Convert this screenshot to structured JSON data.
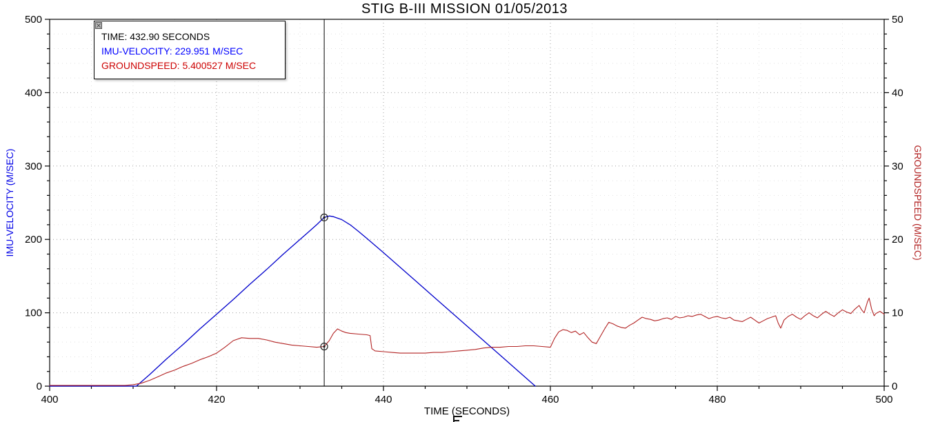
{
  "chart_data": {
    "type": "line",
    "title": "STIG B-III MISSION 01/05/2013",
    "xlabel": "TIME (SECONDS)",
    "grid": true,
    "legend_position": "none",
    "x_axis": {
      "min": 400,
      "max": 500,
      "major_tick_step": 20,
      "minor_tick_step": 5,
      "tick_labels": [
        "400",
        "420",
        "440",
        "460",
        "480",
        "500"
      ]
    },
    "y_left": {
      "label": "IMU-VELOCITY (M/SEC)",
      "min": 0,
      "max": 500,
      "major_tick_step": 100,
      "minor_tick_step": 20,
      "tick_labels": [
        "0",
        "100",
        "200",
        "300",
        "400",
        "500"
      ],
      "color": "#0000E6"
    },
    "y_right": {
      "label": "GROUNDSPEED (M/SEC)",
      "min": 0,
      "max": 50,
      "major_tick_step": 10,
      "minor_tick_step": 2,
      "tick_labels": [
        "0",
        "10",
        "20",
        "30",
        "40",
        "50"
      ],
      "color": "#B22222"
    },
    "cursor": {
      "time": 432.9,
      "imu_velocity": 229.951,
      "groundspeed": 5.400527
    },
    "series": [
      {
        "name": "IMU-VELOCITY",
        "axis": "left",
        "color": "#0000CC",
        "points": [
          [
            400,
            0
          ],
          [
            405,
            0
          ],
          [
            408,
            0
          ],
          [
            410.4,
            0
          ],
          [
            412,
            16
          ],
          [
            414,
            37
          ],
          [
            416,
            57
          ],
          [
            418,
            78
          ],
          [
            420,
            98
          ],
          [
            422,
            118
          ],
          [
            424,
            139
          ],
          [
            426,
            159
          ],
          [
            428,
            180
          ],
          [
            430,
            200
          ],
          [
            431,
            210
          ],
          [
            432,
            220
          ],
          [
            432.9,
            229.951
          ],
          [
            433.5,
            232
          ],
          [
            434,
            231
          ],
          [
            435,
            227
          ],
          [
            436,
            220
          ],
          [
            437,
            211
          ],
          [
            438,
            201.5
          ],
          [
            440,
            182
          ],
          [
            442,
            162
          ],
          [
            444,
            142
          ],
          [
            446,
            122
          ],
          [
            448,
            102
          ],
          [
            450,
            82
          ],
          [
            452,
            62
          ],
          [
            454,
            42
          ],
          [
            456,
            22
          ],
          [
            457.4,
            8
          ],
          [
            458.2,
            0
          ]
        ]
      },
      {
        "name": "GROUNDSPEED",
        "axis": "right",
        "color": "#B22222",
        "points": [
          [
            400,
            0.1
          ],
          [
            405,
            0.1
          ],
          [
            409,
            0.1
          ],
          [
            410,
            0.2
          ],
          [
            411,
            0.4
          ],
          [
            412,
            0.8
          ],
          [
            413,
            1.3
          ],
          [
            414,
            1.8
          ],
          [
            415,
            2.2
          ],
          [
            416,
            2.7
          ],
          [
            417,
            3.1
          ],
          [
            418,
            3.6
          ],
          [
            419,
            4.0
          ],
          [
            420,
            4.5
          ],
          [
            421,
            5.3
          ],
          [
            422,
            6.2
          ],
          [
            423,
            6.6
          ],
          [
            424,
            6.5
          ],
          [
            425,
            6.5
          ],
          [
            426,
            6.3
          ],
          [
            427,
            6.0
          ],
          [
            428,
            5.8
          ],
          [
            429,
            5.6
          ],
          [
            430,
            5.5
          ],
          [
            431,
            5.4
          ],
          [
            432,
            5.3
          ],
          [
            432.9,
            5.400527
          ],
          [
            433.5,
            6.2
          ],
          [
            434,
            7.2
          ],
          [
            434.5,
            7.8
          ],
          [
            435,
            7.5
          ],
          [
            435.5,
            7.3
          ],
          [
            436,
            7.2
          ],
          [
            437,
            7.1
          ],
          [
            438,
            7.0
          ],
          [
            438.4,
            6.9
          ],
          [
            438.6,
            5.1
          ],
          [
            439,
            4.8
          ],
          [
            440,
            4.7
          ],
          [
            441,
            4.6
          ],
          [
            442,
            4.5
          ],
          [
            443,
            4.5
          ],
          [
            444,
            4.5
          ],
          [
            445,
            4.5
          ],
          [
            446,
            4.6
          ],
          [
            447,
            4.6
          ],
          [
            448,
            4.7
          ],
          [
            449,
            4.8
          ],
          [
            450,
            4.9
          ],
          [
            451,
            5.0
          ],
          [
            452,
            5.2
          ],
          [
            453,
            5.3
          ],
          [
            454,
            5.3
          ],
          [
            455,
            5.4
          ],
          [
            456,
            5.4
          ],
          [
            457,
            5.5
          ],
          [
            458,
            5.5
          ],
          [
            459,
            5.4
          ],
          [
            460,
            5.3
          ],
          [
            460.5,
            6.5
          ],
          [
            461,
            7.4
          ],
          [
            461.5,
            7.7
          ],
          [
            462,
            7.6
          ],
          [
            462.5,
            7.3
          ],
          [
            463,
            7.5
          ],
          [
            463.5,
            7.0
          ],
          [
            464,
            7.3
          ],
          [
            464.5,
            6.6
          ],
          [
            465,
            6.0
          ],
          [
            465.5,
            5.8
          ],
          [
            466,
            6.8
          ],
          [
            466.5,
            7.8
          ],
          [
            467,
            8.7
          ],
          [
            467.5,
            8.5
          ],
          [
            468,
            8.2
          ],
          [
            468.5,
            8.0
          ],
          [
            469,
            7.9
          ],
          [
            469.5,
            8.3
          ],
          [
            470,
            8.6
          ],
          [
            470.5,
            9.0
          ],
          [
            471,
            9.4
          ],
          [
            471.5,
            9.2
          ],
          [
            472,
            9.1
          ],
          [
            472.5,
            8.9
          ],
          [
            473,
            9.0
          ],
          [
            473.5,
            9.2
          ],
          [
            474,
            9.3
          ],
          [
            474.5,
            9.1
          ],
          [
            475,
            9.5
          ],
          [
            475.5,
            9.3
          ],
          [
            476,
            9.4
          ],
          [
            476.5,
            9.6
          ],
          [
            477,
            9.5
          ],
          [
            477.5,
            9.7
          ],
          [
            478,
            9.8
          ],
          [
            478.5,
            9.5
          ],
          [
            479,
            9.2
          ],
          [
            479.5,
            9.4
          ],
          [
            480,
            9.5
          ],
          [
            480.5,
            9.3
          ],
          [
            481,
            9.2
          ],
          [
            481.5,
            9.4
          ],
          [
            482,
            9.0
          ],
          [
            482.5,
            8.9
          ],
          [
            483,
            8.8
          ],
          [
            483.5,
            9.1
          ],
          [
            484,
            9.4
          ],
          [
            484.5,
            9.0
          ],
          [
            485,
            8.6
          ],
          [
            485.5,
            8.9
          ],
          [
            486,
            9.2
          ],
          [
            486.5,
            9.4
          ],
          [
            487,
            9.6
          ],
          [
            487.3,
            8.6
          ],
          [
            487.6,
            7.9
          ],
          [
            488,
            9.0
          ],
          [
            488.5,
            9.5
          ],
          [
            489,
            9.8
          ],
          [
            489.5,
            9.4
          ],
          [
            490,
            9.1
          ],
          [
            490.5,
            9.6
          ],
          [
            491,
            10.0
          ],
          [
            491.5,
            9.6
          ],
          [
            492,
            9.3
          ],
          [
            492.5,
            9.8
          ],
          [
            493,
            10.2
          ],
          [
            493.5,
            9.8
          ],
          [
            494,
            9.5
          ],
          [
            494.5,
            10.0
          ],
          [
            495,
            10.4
          ],
          [
            495.5,
            10.1
          ],
          [
            496,
            9.9
          ],
          [
            496.5,
            10.5
          ],
          [
            497,
            11.0
          ],
          [
            497.3,
            10.4
          ],
          [
            497.6,
            10.0
          ],
          [
            498,
            11.5
          ],
          [
            498.2,
            12.0
          ],
          [
            498.5,
            10.5
          ],
          [
            498.8,
            9.6
          ],
          [
            499,
            9.9
          ],
          [
            499.5,
            10.2
          ],
          [
            500,
            9.8
          ]
        ]
      }
    ]
  },
  "tooltip": {
    "lines": [
      {
        "text": "TIME: 432.90 SECONDS",
        "color": "#000000"
      },
      {
        "text": "IMU-VELOCITY: 229.951 M/SEC",
        "color": "#0000FF"
      },
      {
        "text": "GROUNDSPEED: 5.400527 M/SEC",
        "color": "#CC0000"
      }
    ]
  }
}
